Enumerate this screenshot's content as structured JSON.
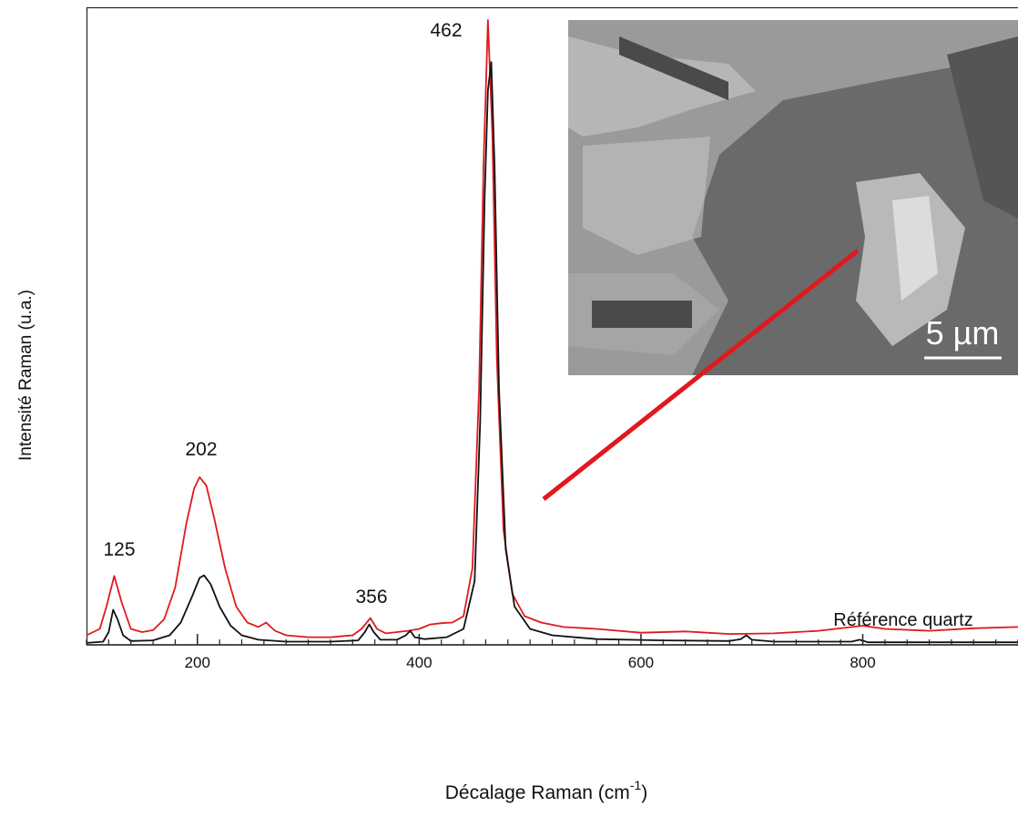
{
  "chart_data": {
    "type": "line",
    "ylabel": "Intensité Raman (u.a.)",
    "xlabel": [
      "Décalage Raman (cm",
      "-1",
      ")"
    ],
    "xlim": [
      100,
      940
    ],
    "ylim": [
      0,
      100
    ],
    "xticks": [
      200,
      400,
      600,
      800
    ],
    "xminorticks": [
      100,
      120,
      140,
      160,
      180,
      220,
      240,
      260,
      280,
      300,
      320,
      340,
      360,
      380,
      420,
      440,
      460,
      480,
      500,
      520,
      540,
      560,
      580,
      620,
      640,
      660,
      680,
      700,
      720,
      740,
      760,
      780,
      820,
      840,
      860,
      880,
      900,
      920,
      940
    ],
    "annotations": [
      "125",
      "202",
      "356",
      "462"
    ],
    "inset": {
      "scale_label": "5 µm"
    },
    "series": [
      {
        "color": "#e0191f",
        "x": [
          100,
          112,
          118,
          125,
          132,
          140,
          150,
          160,
          170,
          180,
          190,
          197,
          202,
          208,
          215,
          225,
          235,
          245,
          255,
          262,
          270,
          280,
          300,
          320,
          340,
          348,
          356,
          362,
          370,
          390,
          400,
          410,
          420,
          430,
          440,
          448,
          454,
          458,
          462,
          466,
          470,
          476,
          484,
          495,
          510,
          530,
          560,
          600,
          640,
          680,
          720,
          760,
          800,
          820,
          860,
          900,
          940
        ],
        "values": [
          1.5,
          2.5,
          6,
          10.8,
          6.5,
          2.5,
          2,
          2.3,
          4,
          9,
          19,
          24.5,
          26.3,
          25,
          20,
          12,
          6,
          3.5,
          2.8,
          3.5,
          2.2,
          1.5,
          1.2,
          1.2,
          1.5,
          2.5,
          4.2,
          2.5,
          1.8,
          2.2,
          2.5,
          3.2,
          3.4,
          3.5,
          4.5,
          12,
          40,
          75,
          98,
          80,
          45,
          18,
          8,
          4.5,
          3.5,
          2.8,
          2.5,
          1.9,
          2.1,
          1.7,
          1.8,
          2.2,
          3,
          2.5,
          2.2,
          2.6,
          2.8
        ]
      },
      {
        "name": "Référence quartz",
        "color": "#111111",
        "x": [
          100,
          115,
          120,
          124,
          128,
          133,
          140,
          160,
          175,
          185,
          195,
          202,
          206,
          212,
          220,
          230,
          240,
          255,
          280,
          320,
          345,
          351,
          355,
          359,
          365,
          380,
          388,
          392,
          396,
          405,
          425,
          440,
          450,
          455,
          459,
          462,
          465,
          468,
          472,
          478,
          486,
          500,
          520,
          560,
          620,
          680,
          690,
          695,
          700,
          720,
          790,
          797,
          805,
          940
        ],
        "values": [
          0.3,
          0.5,
          2,
          5.5,
          4,
          1.5,
          0.6,
          0.7,
          1.5,
          3.5,
          7.5,
          10.5,
          10.9,
          9.5,
          6,
          3,
          1.5,
          0.8,
          0.5,
          0.5,
          0.7,
          2,
          3.2,
          2,
          0.8,
          0.8,
          1.5,
          2.2,
          1.2,
          0.9,
          1.2,
          2.5,
          10,
          35,
          70,
          87,
          91.4,
          75,
          40,
          15,
          6,
          2.5,
          1.5,
          0.9,
          0.7,
          0.6,
          0.9,
          1.5,
          0.8,
          0.5,
          0.5,
          0.8,
          0.4,
          0.4
        ]
      }
    ]
  }
}
